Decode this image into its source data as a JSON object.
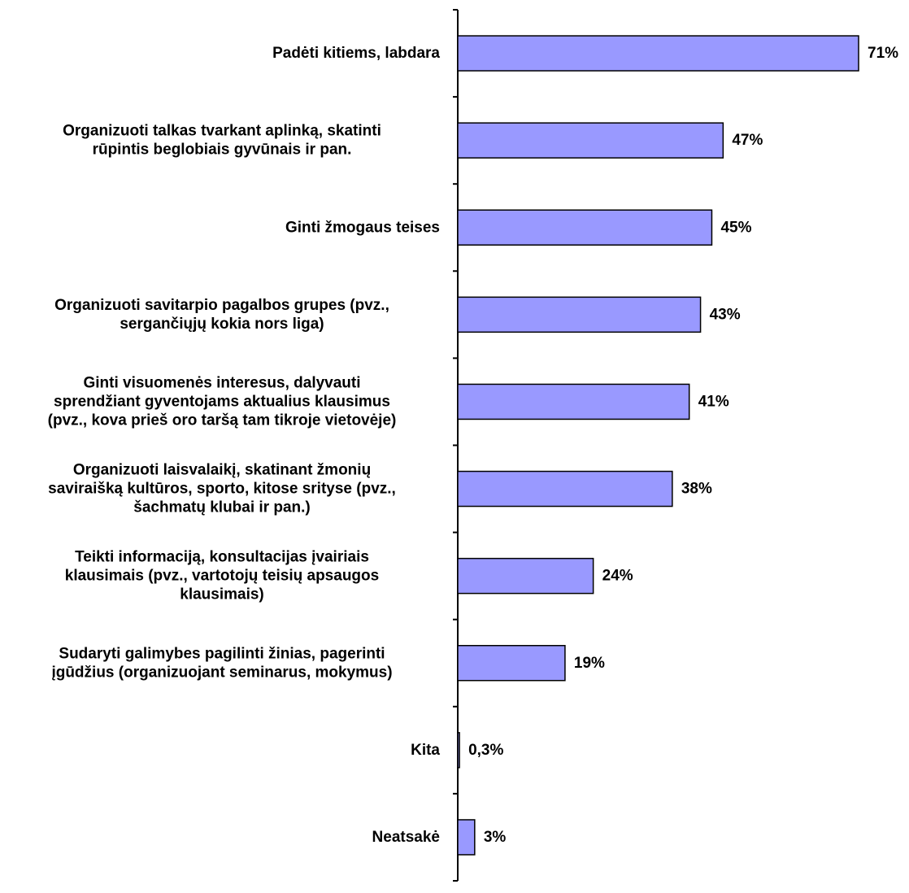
{
  "chart_data": {
    "type": "bar",
    "orientation": "horizontal",
    "categories": [
      [
        "Padėti kitiems, labdara"
      ],
      [
        "Organizuoti talkas tvarkant aplinką, skatinti",
        "rūpintis beglobiais gyvūnais ir pan."
      ],
      [
        "Ginti žmogaus teises"
      ],
      [
        "Organizuoti savitarpio pagalbos grupes (pvz.,",
        "sergančiųjų kokia nors liga)"
      ],
      [
        "Ginti visuomenės interesus, dalyvauti",
        "sprendžiant gyventojams aktualius klausimus",
        "(pvz., kova prieš oro taršą tam tikroje vietovėje)"
      ],
      [
        "Organizuoti laisvalaikį, skatinant žmonių",
        "saviraišką kultūros, sporto, kitose srityse (pvz.,",
        "šachmatų klubai ir pan.)"
      ],
      [
        "Teikti informaciją, konsultacijas įvairiais",
        "klausimais (pvz., vartotojų teisių apsaugos",
        "klausimais)"
      ],
      [
        "Sudaryti galimybes pagilinti žinias, pagerinti",
        "įgūdžius (organizuojant seminarus, mokymus)"
      ],
      [
        "Kita"
      ],
      [
        "Neatsakė"
      ]
    ],
    "values": [
      71,
      47,
      45,
      43,
      41,
      38,
      24,
      19,
      0.3,
      3
    ],
    "data_labels": [
      "71%",
      "47%",
      "45%",
      "43%",
      "41%",
      "38%",
      "24%",
      "19%",
      "0,3%",
      "3%"
    ],
    "xlim": [
      0,
      71
    ],
    "bar_color": "#9999ff",
    "grid": false,
    "legend": "none"
  }
}
